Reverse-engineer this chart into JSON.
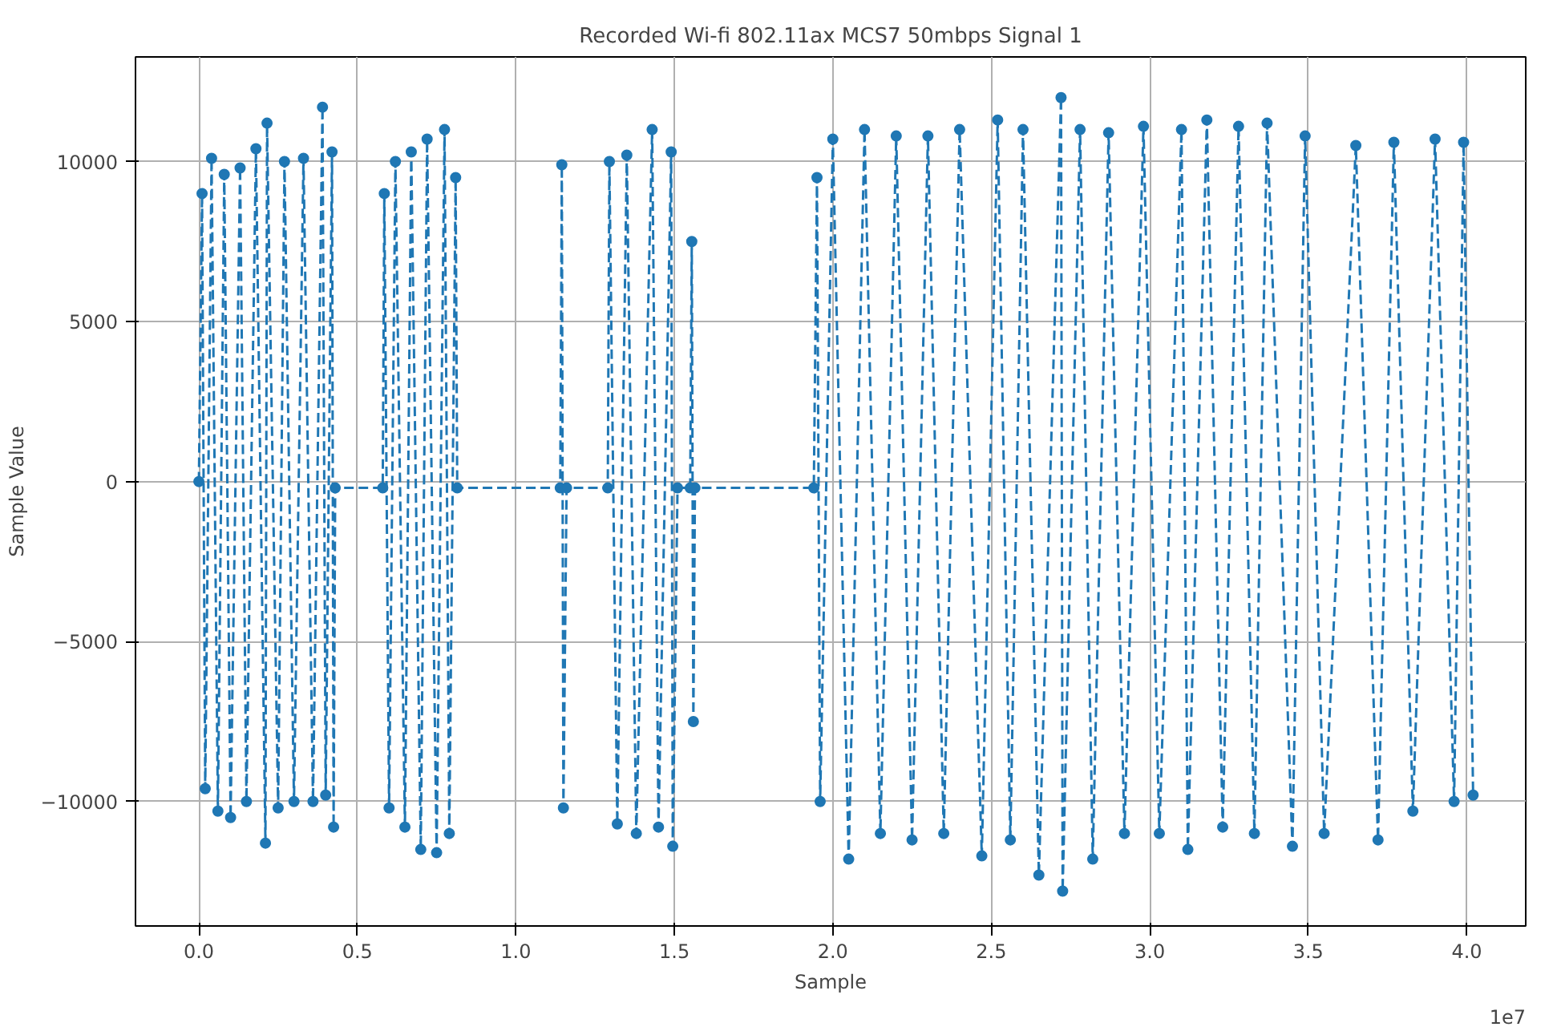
{
  "chart_data": {
    "type": "line",
    "title": "Recorded Wi-fi 802.11ax MCS7 50mbps Signal 1",
    "xlabel": "Sample",
    "ylabel": "Sample Value",
    "annotations": [
      "1e7"
    ],
    "xlim": [
      -0.2,
      4.186
    ],
    "ylim": [
      -13890,
      13270
    ],
    "xticks": [
      {
        "value": 0,
        "label": "0.0"
      },
      0.5,
      {
        "value": 1,
        "label": "1.0"
      },
      1.5,
      {
        "value": 2,
        "label": "2.0"
      },
      2.5,
      {
        "value": 3,
        "label": "3.0"
      },
      3.5,
      {
        "value": 4,
        "label": "4.0"
      }
    ],
    "yticks": [
      {
        "value": -10000,
        "label": "−10000"
      },
      {
        "value": -5000,
        "label": "−5000"
      },
      0,
      5000,
      10000
    ],
    "grid": true,
    "marker": "circle",
    "line_style": "dashed",
    "series": [
      {
        "color": "#1f77b4",
        "x": [
          0,
          0.01,
          0.02,
          0.04,
          0.06,
          0.08,
          0.1,
          0.13,
          0.15,
          0.18,
          0.21,
          0.215,
          0.25,
          0.27,
          0.3,
          0.33,
          0.36,
          0.39,
          0.4,
          0.42,
          0.425,
          0.43,
          0.58,
          0.585,
          0.6,
          0.62,
          0.65,
          0.67,
          0.7,
          0.72,
          0.75,
          0.775,
          0.79,
          0.81,
          0.815,
          1.14,
          1.145,
          1.15,
          1.16,
          1.29,
          1.295,
          1.32,
          1.35,
          1.38,
          1.43,
          1.45,
          1.49,
          1.495,
          1.51,
          1.55,
          1.555,
          1.56,
          1.565,
          1.94,
          1.95,
          1.96,
          2.0,
          2.05,
          2.1,
          2.15,
          2.2,
          2.25,
          2.3,
          2.35,
          2.4,
          2.47,
          2.52,
          2.56,
          2.6,
          2.65,
          2.72,
          2.725,
          2.78,
          2.82,
          2.87,
          2.92,
          2.98,
          3.03,
          3.1,
          3.12,
          3.18,
          3.23,
          3.28,
          3.33,
          3.37,
          3.45,
          3.49,
          3.55,
          3.65,
          3.72,
          3.77,
          3.83,
          3.9,
          3.96,
          3.99,
          4.02
        ],
        "values": [
          0,
          9000,
          -9600,
          10100,
          -10300,
          9600,
          -10500,
          9800,
          -10000,
          10400,
          -11300,
          11200,
          -10200,
          10000,
          -10000,
          10100,
          -10000,
          11700,
          -9800,
          10300,
          -10800,
          -200,
          -200,
          9000,
          -10200,
          10000,
          -10800,
          10300,
          -11500,
          10700,
          -11600,
          11000,
          -11000,
          9500,
          -200,
          -200,
          9900,
          -10200,
          -200,
          -200,
          10000,
          -10700,
          10200,
          -11000,
          11000,
          -10800,
          10300,
          -11400,
          -200,
          -200,
          7500,
          -7500,
          -200,
          -200,
          9500,
          -10000,
          10700,
          -11800,
          11000,
          -11000,
          10800,
          -11200,
          10800,
          -11000,
          11000,
          -11700,
          11300,
          -11200,
          11000,
          -12300,
          12000,
          -12800,
          11000,
          -11800,
          10900,
          -11000,
          11100,
          -11000,
          11000,
          -11500,
          11300,
          -10800,
          11100,
          -11000,
          11200,
          -11400,
          10800,
          -11000,
          10500,
          -11200,
          10600,
          -10300,
          10700,
          -10000,
          10600,
          -9800
        ]
      }
    ]
  }
}
